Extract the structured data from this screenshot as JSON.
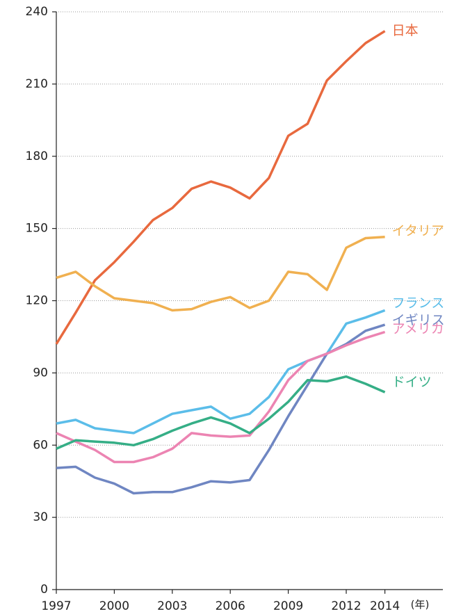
{
  "chart_data": {
    "type": "line",
    "x": [
      1997,
      1998,
      1999,
      2000,
      2001,
      2002,
      2003,
      2004,
      2005,
      2006,
      2007,
      2008,
      2009,
      2010,
      2011,
      2012,
      2013,
      2014
    ],
    "xlim": [
      1997,
      2017
    ],
    "xticks": [
      1997,
      2000,
      2003,
      2006,
      2009,
      2012,
      2014
    ],
    "x_unit": "(年)",
    "ylim": [
      0,
      240
    ],
    "yticks": [
      0,
      30,
      60,
      90,
      120,
      150,
      180,
      210,
      240
    ],
    "grid": true,
    "series": [
      {
        "name": "日本",
        "color": "#e8693e",
        "values": [
          102,
          115,
          128.5,
          136,
          144.5,
          153.5,
          158.5,
          166.5,
          169.5,
          167,
          162.5,
          171,
          188.5,
          193.5,
          211.5,
          219.5,
          227,
          232
        ]
      },
      {
        "name": "イタリア",
        "color": "#f0b050",
        "values": [
          129.5,
          132,
          126,
          121,
          120,
          119,
          116,
          116.5,
          119.5,
          121.5,
          117,
          120,
          132,
          131,
          124.5,
          142,
          146,
          146.5
        ]
      },
      {
        "name": "フランス",
        "color": "#5bbde9",
        "values": [
          69,
          70.5,
          67,
          66,
          65,
          69,
          73,
          74.5,
          76,
          71,
          73,
          80,
          91.5,
          95,
          98,
          110.5,
          113,
          116
        ]
      },
      {
        "name": "イギリス",
        "color": "#6f86c2",
        "values": [
          50.5,
          51,
          46.5,
          44,
          40,
          40.5,
          40.5,
          42.5,
          45,
          44.5,
          45.5,
          58,
          72,
          85,
          98,
          102,
          107.5,
          110
        ]
      },
      {
        "name": "アメリカ",
        "color": "#ec84b2",
        "values": [
          65,
          61.5,
          58,
          53,
          53,
          55,
          58.5,
          65,
          64,
          63.5,
          64,
          74,
          87,
          95,
          98,
          101.5,
          104.5,
          107
        ]
      },
      {
        "name": "ドイツ",
        "color": "#35ae86",
        "values": [
          58.5,
          62,
          61.5,
          61,
          60,
          62.5,
          66,
          69,
          71.5,
          69,
          65,
          71,
          78,
          87,
          86.5,
          88.5,
          85.5,
          82
        ]
      }
    ]
  }
}
